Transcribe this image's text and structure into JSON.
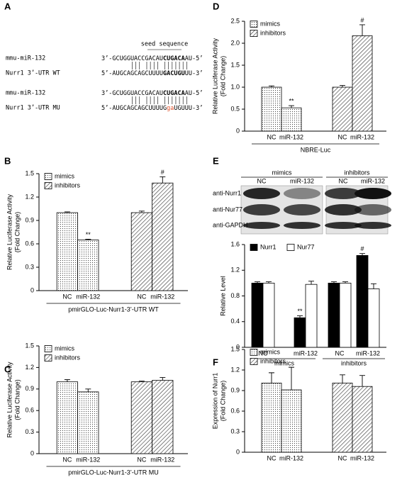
{
  "sequence_panel": {
    "panel": "A",
    "seed_label": "seed sequence",
    "rows": [
      {
        "name": "mmu-miR-132",
        "seq": [
          "3’-GCUGGUACCGACAU",
          "CUGACA",
          "AU-5’"
        ]
      },
      {
        "name": "Nurr1 3’-UTR WT",
        "seq": [
          "5’-AUGCAGCAGCUUUU",
          "GACUGU",
          "UU-3’"
        ]
      },
      {
        "name": "mmu-miR-132",
        "seq": [
          "3’-GCUGGUACCGACAU",
          "CUGACA",
          "AU-5’"
        ]
      },
      {
        "name": "Nurr1 3’-UTR MU",
        "seq": [
          "5’-AUGCAGCAGCUUUUG",
          "ga",
          "UGUUU-3’"
        ],
        "color": "#e0502a"
      }
    ]
  },
  "blot": {
    "groups": [
      "mimics",
      "inhibitors"
    ],
    "lanes": [
      "NC",
      "miR-132",
      "NC",
      "miR-132"
    ],
    "rows": [
      "anti-Nurr1",
      "anti-Nur77",
      "anti-GAPDH"
    ]
  },
  "chart_data": [
    {
      "panel": "B",
      "type": "bar",
      "ylabel": [
        "Relative Luciferase Activity",
        "(Fold Change)"
      ],
      "xlabel": "pmirGLO-Luc-Nurr1-3’-UTR WT",
      "categories": [
        "NC",
        "miR-132",
        "NC",
        "miR-132"
      ],
      "ylim": [
        0,
        1.5
      ],
      "yticks": [
        0,
        0.3,
        0.6,
        0.9,
        1.2,
        1.5
      ],
      "legend": "upper left",
      "series": [
        {
          "name": "mimics",
          "pattern": "dots",
          "values": [
            1.0,
            0.65,
            null,
            null
          ],
          "errors": [
            0.01,
            0.01,
            null,
            null
          ],
          "marks": [
            null,
            "**",
            null,
            null
          ]
        },
        {
          "name": "inhibitors",
          "pattern": "hatch",
          "values": [
            null,
            null,
            1.0,
            1.38
          ],
          "errors": [
            null,
            null,
            0.02,
            0.08
          ],
          "marks": [
            null,
            null,
            null,
            "#"
          ]
        }
      ]
    },
    {
      "panel": "C",
      "type": "bar",
      "ylabel": [
        "Relative Luciferase Activity",
        "(Fold Change)"
      ],
      "xlabel": "pmirGLO-Luc-Nurr1-3’-UTR MU",
      "categories": [
        "NC",
        "miR-132",
        "NC",
        "miR-132"
      ],
      "ylim": [
        0,
        1.5
      ],
      "yticks": [
        0,
        0.3,
        0.6,
        0.9,
        1.2,
        1.5
      ],
      "legend": "upper left",
      "series": [
        {
          "name": "mimics",
          "pattern": "dots",
          "values": [
            1.0,
            0.86,
            null,
            null
          ],
          "errors": [
            0.03,
            0.04,
            null,
            null
          ]
        },
        {
          "name": "inhibitors",
          "pattern": "hatch",
          "values": [
            null,
            null,
            1.0,
            1.02
          ],
          "errors": [
            null,
            null,
            0.01,
            0.04
          ]
        }
      ]
    },
    {
      "panel": "D",
      "type": "bar",
      "ylabel": [
        "Relative Luciferase Activity",
        "(Fold Change)"
      ],
      "xlabel": "NBRE-Luc",
      "categories": [
        "NC",
        "miR-132",
        "NC",
        "miR-132"
      ],
      "ylim": [
        0,
        2.5
      ],
      "yticks": [
        0,
        0.5,
        {
          "value": 1,
          "label": "1.0"
        },
        1.5,
        {
          "value": 2,
          "label": "2.0"
        },
        2.5
      ],
      "legend": "upper left",
      "series": [
        {
          "name": "mimics",
          "pattern": "dots",
          "values": [
            1.0,
            0.53,
            null,
            null
          ],
          "errors": [
            0.03,
            0.05,
            null,
            null
          ],
          "marks": [
            null,
            "**",
            null,
            null
          ]
        },
        {
          "name": "inhibitors",
          "pattern": "hatch",
          "values": [
            null,
            null,
            1.0,
            2.17
          ],
          "errors": [
            null,
            null,
            0.04,
            0.25
          ],
          "marks": [
            null,
            null,
            null,
            "#"
          ]
        }
      ]
    },
    {
      "panel": "E",
      "type": "bar",
      "ylabel": [
        "Relative Level"
      ],
      "groups": [
        "mimics",
        "inhibitors"
      ],
      "categories": [
        "NC",
        "miR-132",
        "NC",
        "miR-132"
      ],
      "ylim": [
        0,
        1.6
      ],
      "yticks": [
        0,
        0.4,
        0.8,
        1.2,
        1.6
      ],
      "legend": "upper left",
      "series": [
        {
          "name": "Nurr1",
          "color": "#000000",
          "values": [
            1.0,
            0.46,
            1.0,
            1.43
          ],
          "errors": [
            0.02,
            0.03,
            0.02,
            0.03
          ],
          "marks": [
            null,
            "**",
            null,
            "#"
          ]
        },
        {
          "name": "Nur77",
          "color": "#ffffff",
          "values": [
            1.0,
            0.98,
            1.0,
            0.91
          ],
          "errors": [
            0.02,
            0.05,
            0.02,
            0.08
          ]
        }
      ]
    },
    {
      "panel": "F",
      "type": "bar",
      "ylabel": [
        "Expression of Nurr1",
        "(Fold Change)"
      ],
      "categories": [
        "NC",
        "miR-132",
        "NC",
        "miR-132"
      ],
      "ylim": [
        0,
        1.5
      ],
      "yticks": [
        0,
        0.3,
        0.6,
        0.9,
        1.2,
        1.5
      ],
      "legend": "upper left",
      "series": [
        {
          "name": "mimics",
          "pattern": "dots",
          "values": [
            1.01,
            0.91,
            null,
            null
          ],
          "errors": [
            0.15,
            0.33,
            null,
            null
          ]
        },
        {
          "name": "inhibitors",
          "pattern": "hatch",
          "values": [
            null,
            null,
            1.01,
            0.96
          ],
          "errors": [
            null,
            null,
            0.12,
            0.16
          ]
        }
      ]
    }
  ]
}
